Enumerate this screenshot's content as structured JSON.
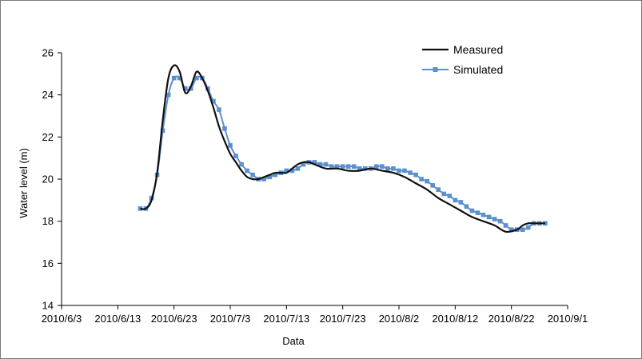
{
  "chart_data": {
    "type": "line",
    "title": "",
    "xlabel": "Data",
    "ylabel": "Water level (m)",
    "ylim": [
      14,
      26
    ],
    "y_ticks": [
      14,
      16,
      18,
      20,
      22,
      24,
      26
    ],
    "x_range": [
      "2010-06-03",
      "2010-09-01"
    ],
    "x_ticks": [
      "2010/6/3",
      "2010/6/13",
      "2010/6/23",
      "2010/7/3",
      "2010/7/13",
      "2010/7/23",
      "2010/8/2",
      "2010/8/12",
      "2010/8/22",
      "2010/9/1"
    ],
    "grid": false,
    "legend": "top-right",
    "series": [
      {
        "name": "Measured",
        "color": "#111111",
        "marker": "none",
        "x": [
          "2010-06-17",
          "2010-06-18",
          "2010-06-19",
          "2010-06-20",
          "2010-06-21",
          "2010-06-22",
          "2010-06-23",
          "2010-06-24",
          "2010-06-25",
          "2010-06-26",
          "2010-06-27",
          "2010-06-28",
          "2010-06-29",
          "2010-06-30",
          "2010-07-01",
          "2010-07-02",
          "2010-07-03",
          "2010-07-04",
          "2010-07-05",
          "2010-07-06",
          "2010-07-07",
          "2010-07-08",
          "2010-07-09",
          "2010-07-10",
          "2010-07-11",
          "2010-07-12",
          "2010-07-13",
          "2010-07-14",
          "2010-07-15",
          "2010-07-16",
          "2010-07-17",
          "2010-07-18",
          "2010-07-20",
          "2010-07-22",
          "2010-07-24",
          "2010-07-26",
          "2010-07-28",
          "2010-07-30",
          "2010-08-01",
          "2010-08-03",
          "2010-08-05",
          "2010-08-07",
          "2010-08-09",
          "2010-08-11",
          "2010-08-13",
          "2010-08-15",
          "2010-08-17",
          "2010-08-19",
          "2010-08-21",
          "2010-08-23",
          "2010-08-24",
          "2010-08-25",
          "2010-08-26",
          "2010-08-27",
          "2010-08-28"
        ],
        "y": [
          18.6,
          18.6,
          19.0,
          20.3,
          22.8,
          24.8,
          25.4,
          25.1,
          24.1,
          24.4,
          25.1,
          24.8,
          24.2,
          23.4,
          22.5,
          21.8,
          21.2,
          20.8,
          20.4,
          20.1,
          20.0,
          20.0,
          20.1,
          20.2,
          20.3,
          20.3,
          20.3,
          20.5,
          20.7,
          20.8,
          20.8,
          20.7,
          20.5,
          20.5,
          20.4,
          20.4,
          20.5,
          20.4,
          20.3,
          20.1,
          19.8,
          19.5,
          19.1,
          18.8,
          18.5,
          18.2,
          18.0,
          17.8,
          17.5,
          17.6,
          17.8,
          17.9,
          17.9,
          17.9,
          17.9
        ]
      },
      {
        "name": "Simulated",
        "color": "#5b8fcf",
        "marker": "square",
        "x": [
          "2010-06-17",
          "2010-06-18",
          "2010-06-19",
          "2010-06-20",
          "2010-06-21",
          "2010-06-22",
          "2010-06-23",
          "2010-06-24",
          "2010-06-25",
          "2010-06-26",
          "2010-06-27",
          "2010-06-28",
          "2010-06-29",
          "2010-06-30",
          "2010-07-01",
          "2010-07-02",
          "2010-07-03",
          "2010-07-04",
          "2010-07-05",
          "2010-07-06",
          "2010-07-07",
          "2010-07-08",
          "2010-07-09",
          "2010-07-10",
          "2010-07-11",
          "2010-07-12",
          "2010-07-13",
          "2010-07-14",
          "2010-07-15",
          "2010-07-16",
          "2010-07-17",
          "2010-07-18",
          "2010-07-19",
          "2010-07-20",
          "2010-07-21",
          "2010-07-22",
          "2010-07-23",
          "2010-07-24",
          "2010-07-25",
          "2010-07-26",
          "2010-07-27",
          "2010-07-28",
          "2010-07-29",
          "2010-07-30",
          "2010-07-31",
          "2010-08-01",
          "2010-08-02",
          "2010-08-03",
          "2010-08-04",
          "2010-08-05",
          "2010-08-06",
          "2010-08-07",
          "2010-08-08",
          "2010-08-09",
          "2010-08-10",
          "2010-08-11",
          "2010-08-12",
          "2010-08-13",
          "2010-08-14",
          "2010-08-15",
          "2010-08-16",
          "2010-08-17",
          "2010-08-18",
          "2010-08-19",
          "2010-08-20",
          "2010-08-21",
          "2010-08-22",
          "2010-08-23",
          "2010-08-24",
          "2010-08-25",
          "2010-08-26",
          "2010-08-27",
          "2010-08-28"
        ],
        "y": [
          18.6,
          18.6,
          19.1,
          20.2,
          22.3,
          24.0,
          24.8,
          24.8,
          24.3,
          24.3,
          24.8,
          24.8,
          24.3,
          23.7,
          23.3,
          22.4,
          21.6,
          21.1,
          20.7,
          20.4,
          20.2,
          20.0,
          20.0,
          20.1,
          20.2,
          20.3,
          20.4,
          20.4,
          20.5,
          20.7,
          20.8,
          20.8,
          20.7,
          20.7,
          20.6,
          20.6,
          20.6,
          20.6,
          20.6,
          20.5,
          20.5,
          20.5,
          20.6,
          20.6,
          20.5,
          20.5,
          20.4,
          20.4,
          20.3,
          20.2,
          20.0,
          19.9,
          19.7,
          19.5,
          19.3,
          19.2,
          19.0,
          18.9,
          18.7,
          18.5,
          18.4,
          18.3,
          18.2,
          18.1,
          18.0,
          17.8,
          17.6,
          17.6,
          17.6,
          17.7,
          17.9,
          17.9,
          17.9
        ]
      }
    ]
  }
}
